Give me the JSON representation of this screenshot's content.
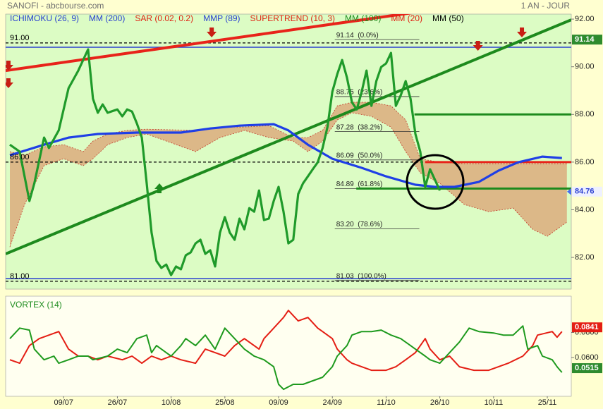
{
  "chart_data": [
    {
      "type": "line",
      "title": "SANOFI - abcbourse.com",
      "subtitle": "1 AN - JOUR",
      "indicators": [
        {
          "name": "ICHIMOKU (26, 9)",
          "color": "#2a3fd0"
        },
        {
          "name": "MM (200)",
          "color": "#2a3fd0"
        },
        {
          "name": "SAR (0.02, 0.2)",
          "color": "#e02010"
        },
        {
          "name": "MMP (89)",
          "color": "#2a3fd0"
        },
        {
          "name": "SUPERTREND (10, 3)",
          "color": "#e02010"
        },
        {
          "name": "MM (100)",
          "color": "#1e8c1e"
        },
        {
          "name": "MM (20)",
          "color": "#e02010"
        },
        {
          "name": "MM (50)",
          "color": "#000000"
        }
      ],
      "xlim": [
        -0.87,
        114.9
      ],
      "xticks": [
        {
          "value": 11,
          "label": "09/07"
        },
        {
          "value": 22,
          "label": "26/07"
        },
        {
          "value": 33,
          "label": "10/08"
        },
        {
          "value": 44,
          "label": "25/08"
        },
        {
          "value": 55,
          "label": "09/09"
        },
        {
          "value": 66,
          "label": "24/09"
        },
        {
          "value": 77,
          "label": "11/10"
        },
        {
          "value": 88,
          "label": "26/10"
        },
        {
          "value": 99,
          "label": "10/11"
        },
        {
          "value": 110,
          "label": "25/11"
        }
      ],
      "ylim": [
        80.67,
        92.21
      ],
      "yticks": [
        {
          "value": 82,
          "label": "82.00"
        },
        {
          "value": 84,
          "label": "84.00"
        },
        {
          "value": 86,
          "label": "86.00"
        },
        {
          "value": 88,
          "label": "88.00"
        },
        {
          "value": 90,
          "label": "90.00"
        },
        {
          "value": 92,
          "label": "92.00"
        }
      ],
      "series": [
        {
          "color": "#1f9a2a",
          "x": [
            0,
            2,
            4,
            5,
            7,
            8,
            10,
            12,
            14,
            16,
            17,
            18,
            19,
            20,
            22,
            23,
            24,
            25,
            26,
            27,
            28,
            29,
            30,
            31,
            32,
            33,
            34,
            35,
            36,
            37,
            38,
            39,
            40,
            41,
            42,
            43,
            44,
            45,
            46,
            47,
            48,
            49,
            50,
            51,
            52,
            53,
            54,
            55,
            56,
            57,
            58,
            59,
            60,
            61,
            62,
            63,
            64,
            65,
            66,
            67,
            68,
            69,
            70,
            71,
            72,
            73,
            74,
            75,
            76,
            77,
            78,
            79,
            80,
            81,
            82,
            83,
            84,
            85,
            86,
            87,
            88
          ],
          "values": [
            86.73,
            86.44,
            84.37,
            85.11,
            87.03,
            86.59,
            87.33,
            89.1,
            89.84,
            90.73,
            88.66,
            88.07,
            88.42,
            88.07,
            88.21,
            87.92,
            88.21,
            88.12,
            87.62,
            87.03,
            85.11,
            83.04,
            81.85,
            81.56,
            81.7,
            81.26,
            81.62,
            81.5,
            82.09,
            82.21,
            82.59,
            82.74,
            82.15,
            82.3,
            81.62,
            83.04,
            83.69,
            83.04,
            82.74,
            83.63,
            83.18,
            84.07,
            83.92,
            84.81,
            83.57,
            83.63,
            84.37,
            84.96,
            83.92,
            82.59,
            82.74,
            84.66,
            85.11,
            85.4,
            85.7,
            85.99,
            86.59,
            87.47,
            88.95,
            89.69,
            90.28,
            89.54,
            88.51,
            88.21,
            88.95,
            89.84,
            88.36,
            89.4,
            89.99,
            90.14,
            90.58,
            88.36,
            88.8,
            89.4,
            88.66,
            87.18,
            86.44,
            84.96,
            85.7,
            85.26,
            84.81
          ]
        },
        {
          "color": "#1f3fe6",
          "x": [
            0,
            7,
            12,
            18,
            26,
            35,
            41,
            47,
            54,
            57,
            61,
            66,
            72,
            77,
            83,
            87,
            91,
            96,
            100,
            104,
            109,
            113
          ],
          "values": [
            86.29,
            86.73,
            87.03,
            87.18,
            87.24,
            87.24,
            87.41,
            87.53,
            87.59,
            87.33,
            86.73,
            86.14,
            85.76,
            85.4,
            85.05,
            84.96,
            84.96,
            85.17,
            85.64,
            85.99,
            86.23,
            86.17
          ]
        }
      ],
      "cloud": {
        "color": "#dcb888",
        "edge_color": "#c0392b",
        "x": [
          0,
          3,
          7,
          11,
          15,
          17,
          20,
          24,
          28,
          38,
          43,
          48,
          53,
          58,
          61,
          64,
          67,
          70,
          74,
          78,
          81,
          84,
          88,
          93,
          98,
          103,
          107,
          110,
          114
        ],
        "upper": [
          86.44,
          86.29,
          86.64,
          86.73,
          86.44,
          86.88,
          87.18,
          87.33,
          87.38,
          87.33,
          87.47,
          87.47,
          87.53,
          87.03,
          87.03,
          87.33,
          88.36,
          88.51,
          88.51,
          88.36,
          87.77,
          86.14,
          85.99,
          85.93,
          85.93,
          85.93,
          85.93,
          85.93,
          85.93
        ],
        "lower": [
          82.44,
          84.22,
          85.85,
          86.14,
          85.85,
          86.14,
          86.73,
          87.03,
          87.18,
          86.44,
          87.03,
          87.33,
          87.03,
          86.88,
          86.44,
          86.88,
          87.77,
          88.07,
          87.92,
          87.47,
          86.44,
          85.55,
          85.11,
          84.22,
          83.92,
          84.07,
          83.18,
          82.89,
          83.48
        ]
      },
      "trendlines": [
        {
          "color": "#e8231a",
          "x": [
            -0.87,
            82.4
          ],
          "values": [
            89.84,
            92.27
          ]
        },
        {
          "color": "#1d8a1d",
          "x": [
            -0.87,
            114.9
          ],
          "values": [
            82.15,
            91.97
          ]
        }
      ],
      "levels": [
        {
          "value": 88,
          "x": [
            82.8,
            114.9
          ],
          "color": "#1d8a1d"
        },
        {
          "value": 86,
          "x": [
            85,
            114.9
          ],
          "color": "#e8231a"
        },
        {
          "value": 84.89,
          "x": [
            70.9,
            114.9
          ],
          "color": "#1d8a1d"
        }
      ],
      "guides": [
        {
          "value": 91,
          "label": "91.00"
        },
        {
          "value": 86,
          "label": "86.00"
        },
        {
          "value": 81,
          "label": "81.00"
        }
      ],
      "bands": [
        {
          "value": 90.82,
          "color": "#2a3fd0"
        },
        {
          "value": 81.11,
          "color": "#2a3fd0"
        }
      ],
      "fibonacci": {
        "x": [
          66.5,
          83.8
        ],
        "levels": [
          {
            "value": 91.14,
            "label": "91.14  (0.0%)"
          },
          {
            "value": 88.75,
            "label": "88.75  (23.6%)"
          },
          {
            "value": 87.28,
            "label": "87.28  (38.2%)"
          },
          {
            "value": 86.09,
            "label": "86.09  (50.0%)"
          },
          {
            "value": 84.89,
            "label": "84.89  (61.8%)"
          },
          {
            "value": 83.2,
            "label": "83.20  (78.6%)"
          },
          {
            "value": 81.03,
            "label": "81.03  (100.0%)"
          }
        ]
      },
      "signals": [
        {
          "x": -0.3,
          "value": 89.99,
          "direction": "down",
          "color": "#c81e14"
        },
        {
          "x": -0.3,
          "value": 89.25,
          "direction": "down",
          "color": "#c81e14"
        },
        {
          "x": 41.3,
          "value": 91.38,
          "direction": "down",
          "color": "#c81e14"
        },
        {
          "x": 95.8,
          "value": 90.82,
          "direction": "down",
          "color": "#c81e14"
        },
        {
          "x": 104.8,
          "value": 91.38,
          "direction": "down",
          "color": "#c81e14"
        },
        {
          "x": 30.6,
          "value": 84.96,
          "direction": "up",
          "color": "#1d8a1d"
        }
      ],
      "price_tags": [
        {
          "value": 91.14,
          "fill": "#2e8b2e",
          "text_color": "#ffffff"
        },
        {
          "value": 84.76,
          "fill": "#eef0ff",
          "text_color": "#2a3fd0"
        }
      ]
    },
    {
      "type": "line",
      "title": "VORTEX (14)",
      "xlim": [
        -0.87,
        114.9
      ],
      "ylim": [
        0.029,
        0.109
      ],
      "yticks": [
        {
          "value": 0.06,
          "label": "0.0600"
        },
        {
          "value": 0.08,
          "label": "0.0800"
        }
      ],
      "series": [
        {
          "color": "#1e9a1e",
          "x": [
            0,
            2,
            4,
            5,
            7,
            9,
            10,
            12,
            14,
            16,
            17,
            20,
            22,
            24,
            26,
            28,
            29,
            30,
            32,
            33,
            35,
            36,
            38,
            40,
            42,
            44,
            46,
            48,
            50,
            52,
            54,
            55,
            56,
            58,
            60,
            62,
            64,
            66,
            67,
            69,
            70,
            72,
            74,
            76,
            78,
            80,
            82,
            83,
            85,
            86,
            88,
            90,
            92,
            94,
            96,
            99,
            101,
            103,
            105,
            106,
            108,
            109,
            111,
            112,
            113
          ],
          "values": [
            0.0751,
            0.0835,
            0.0819,
            0.0667,
            0.0582,
            0.0611,
            0.0554,
            0.0582,
            0.0611,
            0.0611,
            0.0582,
            0.0611,
            0.0667,
            0.0639,
            0.0751,
            0.0779,
            0.0639,
            0.0695,
            0.0639,
            0.0611,
            0.0695,
            0.0751,
            0.0695,
            0.0779,
            0.0667,
            0.0835,
            0.0751,
            0.0667,
            0.0611,
            0.0582,
            0.0526,
            0.0386,
            0.0346,
            0.0386,
            0.0386,
            0.0414,
            0.0442,
            0.0526,
            0.0611,
            0.0695,
            0.0779,
            0.0807,
            0.0807,
            0.0819,
            0.0779,
            0.0751,
            0.0695,
            0.0667,
            0.0611,
            0.0582,
            0.0554,
            0.0639,
            0.0723,
            0.0835,
            0.0807,
            0.0796,
            0.0779,
            0.0779,
            0.0852,
            0.0667,
            0.0695,
            0.0611,
            0.0582,
            0.0526,
            0.0481
          ]
        },
        {
          "color": "#e41e14",
          "x": [
            0,
            2,
            4,
            6,
            8,
            10,
            12,
            14,
            16,
            18,
            20,
            23,
            25,
            27,
            29,
            31,
            33,
            35,
            38,
            40,
            42,
            44,
            46,
            48,
            51,
            52,
            54,
            56,
            57,
            59,
            61,
            63,
            64,
            66,
            67,
            69,
            70,
            72,
            74,
            77,
            79,
            81,
            83,
            85,
            86,
            88,
            90,
            92,
            95,
            98,
            100,
            102,
            105,
            107,
            108,
            111,
            112,
            113
          ],
          "values": [
            0.0582,
            0.0554,
            0.0695,
            0.0751,
            0.0779,
            0.0807,
            0.0667,
            0.0611,
            0.0611,
            0.0582,
            0.0611,
            0.0582,
            0.0611,
            0.0554,
            0.0611,
            0.0582,
            0.0611,
            0.0582,
            0.0554,
            0.0667,
            0.0639,
            0.0611,
            0.0695,
            0.0751,
            0.0667,
            0.0751,
            0.0835,
            0.092,
            0.0976,
            0.0892,
            0.092,
            0.0835,
            0.0807,
            0.0751,
            0.0667,
            0.0582,
            0.0554,
            0.0526,
            0.0498,
            0.0498,
            0.0526,
            0.0582,
            0.0639,
            0.0751,
            0.0667,
            0.0582,
            0.0611,
            0.0526,
            0.0498,
            0.0498,
            0.0526,
            0.0554,
            0.0611,
            0.0695,
            0.0779,
            0.0807,
            0.0762,
            0.0807
          ]
        }
      ],
      "price_tags": [
        {
          "value": 0.0841,
          "fill": "#e41e14",
          "text_color": "#ffffff"
        },
        {
          "value": 0.0515,
          "fill": "#2e8b2e",
          "text_color": "#ffffff"
        }
      ]
    }
  ]
}
